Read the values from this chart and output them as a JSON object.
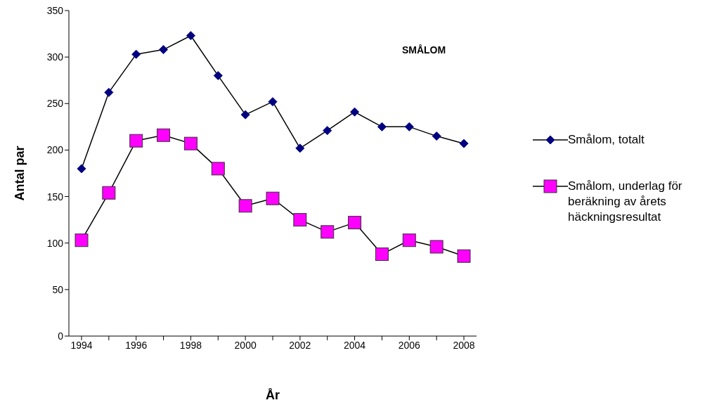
{
  "chart_data": {
    "type": "line",
    "title": "SMÅLOM",
    "xlabel": "År",
    "ylabel": "Antal par",
    "categories": [
      "1994",
      null,
      "1996",
      null,
      "1998",
      null,
      "2000",
      null,
      "2002",
      null,
      "2004",
      null,
      "2006",
      null,
      "2008"
    ],
    "series": [
      {
        "name": "Smålom, totalt",
        "color": "#000080",
        "marker": "diamond",
        "values": [
          180,
          262,
          303,
          308,
          323,
          280,
          238,
          252,
          202,
          221,
          241,
          225,
          225,
          215,
          207
        ]
      },
      {
        "name": "Smålom, underlag för beräkning av årets häckningsresultat",
        "color": "#ff00ff",
        "marker": "square",
        "values": [
          103,
          154,
          210,
          216,
          207,
          180,
          140,
          148,
          125,
          112,
          122,
          88,
          103,
          96,
          86
        ]
      }
    ],
    "ylim": [
      0,
      350
    ],
    "yticks": [
      0,
      50,
      100,
      150,
      200,
      250,
      300,
      350
    ],
    "grid": false,
    "legend": "right"
  }
}
